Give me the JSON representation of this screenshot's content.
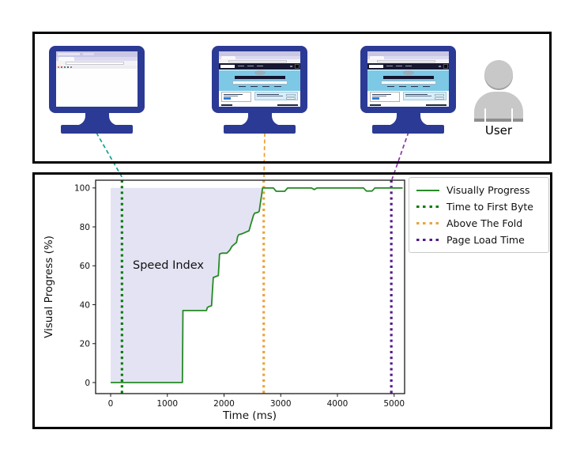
{
  "top_panel": {
    "user_label": "User",
    "monitors": [
      {
        "name": "monitor-first-paint",
        "screen": "blank browser page"
      },
      {
        "name": "monitor-above-the-fold",
        "screen": "page visually rendered"
      },
      {
        "name": "monitor-fully-loaded",
        "screen": "page fully loaded"
      }
    ]
  },
  "colors": {
    "monitor_navy": "#2b3a94",
    "panel_border": "#000000",
    "connector_ttfb": "#14a095",
    "connector_atf": "#ef9d2e",
    "connector_plt": "#8c35a5",
    "speed_index_fill": "#e4e3f4",
    "curve_green": "#268a26",
    "ttfb_green": "#067d06",
    "atf_orange": "#e9a43b",
    "plt_purple": "#541b8c"
  },
  "chart_data": {
    "type": "line",
    "title": "",
    "xlabel": "Time (ms)",
    "ylabel": "Visual Progress (%)",
    "xlim": [
      -265,
      5185
    ],
    "ylim": [
      -5.7,
      104
    ],
    "xticks": [
      "0",
      "1000",
      "2000",
      "3000",
      "4000",
      "5000"
    ],
    "xtick_values": [
      0,
      1000,
      2000,
      3000,
      4000,
      5000
    ],
    "yticks": [
      "0",
      "20",
      "40",
      "60",
      "80",
      "100"
    ],
    "ytick_values": [
      0,
      20,
      40,
      60,
      80,
      100
    ],
    "annotation": "Speed Index",
    "legend_position": "upper right",
    "series": [
      {
        "name": "Visually Progress",
        "type": "line",
        "style": "solid",
        "color": "#268a26",
        "points": [
          [
            0,
            0
          ],
          [
            1265,
            0
          ],
          [
            1275,
            37
          ],
          [
            1690,
            37
          ],
          [
            1705,
            38.5
          ],
          [
            1730,
            39
          ],
          [
            1780,
            39.5
          ],
          [
            1795,
            47
          ],
          [
            1810,
            54
          ],
          [
            1900,
            55
          ],
          [
            1910,
            60
          ],
          [
            1920,
            66
          ],
          [
            1960,
            66.5
          ],
          [
            2050,
            66.5
          ],
          [
            2100,
            68
          ],
          [
            2140,
            70
          ],
          [
            2180,
            71
          ],
          [
            2220,
            72
          ],
          [
            2240,
            75
          ],
          [
            2260,
            76
          ],
          [
            2320,
            76.5
          ],
          [
            2400,
            77.5
          ],
          [
            2440,
            78
          ],
          [
            2460,
            80
          ],
          [
            2480,
            82
          ],
          [
            2500,
            84
          ],
          [
            2520,
            86
          ],
          [
            2540,
            87
          ],
          [
            2600,
            87.5
          ],
          [
            2620,
            88
          ],
          [
            2640,
            92
          ],
          [
            2660,
            96
          ],
          [
            2680,
            100
          ],
          [
            2870,
            100
          ],
          [
            2920,
            98.3
          ],
          [
            3070,
            98.3
          ],
          [
            3120,
            100
          ],
          [
            3540,
            100
          ],
          [
            3590,
            99.2
          ],
          [
            3640,
            100
          ],
          [
            4460,
            100
          ],
          [
            4510,
            98.4
          ],
          [
            4610,
            98.4
          ],
          [
            4660,
            100
          ],
          [
            5150,
            100
          ]
        ]
      },
      {
        "name": "Time to First Byte",
        "type": "vline",
        "style": "dotted",
        "color": "#067d06",
        "x": 200
      },
      {
        "name": "Above The Fold",
        "type": "vline",
        "style": "dotted",
        "color": "#e9a43b",
        "x": 2700
      },
      {
        "name": "Page Load Time",
        "type": "vline",
        "style": "dotted",
        "color": "#541b8c",
        "x": 4950
      }
    ],
    "speed_index_fill": {
      "color": "#e4e3f4",
      "between": "curve and 100%",
      "x_range": [
        0,
        2680
      ]
    }
  }
}
